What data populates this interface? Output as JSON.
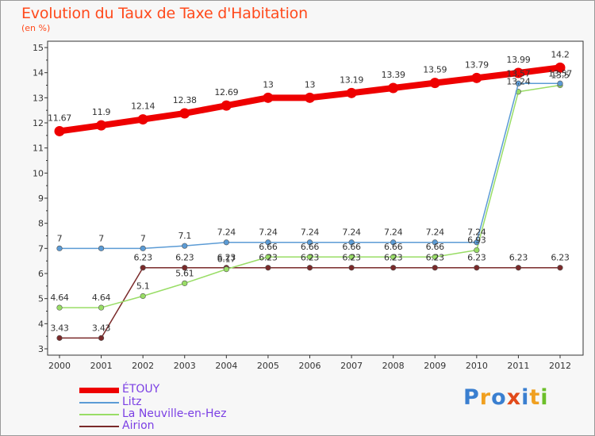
{
  "title": "Evolution du Taux de Taxe d'Habitation",
  "subtitle": "(en %)",
  "brand": {
    "text": "Proxiti",
    "colors": [
      "#3a7fd0",
      "#f0a020",
      "#3a7fd0",
      "#e24a1a",
      "#3a7fd0",
      "#f0a020",
      "#6cbf2a"
    ]
  },
  "chart_data": {
    "type": "line",
    "title": "Evolution du Taux de Taxe d'Habitation",
    "ylabel": "(en %)",
    "xlabel": "",
    "x": [
      "2000",
      "2001",
      "2002",
      "2003",
      "2004",
      "2005",
      "2006",
      "2007",
      "2008",
      "2009",
      "2010",
      "2011",
      "2012"
    ],
    "ylim": [
      3,
      15
    ],
    "yticks": [
      "3",
      "4",
      "5",
      "6",
      "7",
      "8",
      "9",
      "10",
      "11",
      "12",
      "13",
      "14",
      "15"
    ],
    "grid": false,
    "legend_position": "bottom-left",
    "series": [
      {
        "name": "ÉTOUY",
        "color": "#ee0000",
        "style": "thick",
        "values": [
          11.67,
          11.9,
          12.14,
          12.38,
          12.69,
          13,
          13,
          13.19,
          13.39,
          13.59,
          13.79,
          13.99,
          14.2
        ],
        "labels": [
          "11.67",
          "11.9",
          "12.14",
          "12.38",
          "12.69",
          "13",
          "13",
          "13.19",
          "13.39",
          "13.59",
          "13.79",
          "13.99",
          "14.2"
        ]
      },
      {
        "name": "Litz",
        "color": "#5b9bd5",
        "style": "thin",
        "values": [
          7,
          7,
          7,
          7.1,
          7.24,
          7.24,
          7.24,
          7.24,
          7.24,
          7.24,
          7.24,
          13.57,
          13.57
        ],
        "labels": [
          "7",
          "7",
          "7",
          "7.1",
          "7.24",
          "7.24",
          "7.24",
          "7.24",
          "7.24",
          "7.24",
          "7.24",
          "13.57",
          "13.57"
        ]
      },
      {
        "name": "La Neuville-en-Hez",
        "color": "#99dd66",
        "style": "thin",
        "values": [
          4.64,
          4.64,
          5.1,
          5.61,
          6.17,
          6.66,
          6.66,
          6.66,
          6.66,
          6.66,
          6.93,
          13.24,
          13.5
        ],
        "labels": [
          "4.64",
          "4.64",
          "5.1",
          "5.61",
          "6.17",
          "6.66",
          "6.66",
          "6.66",
          "6.66",
          "6.66",
          "6.93",
          "13.24",
          "13.5"
        ]
      },
      {
        "name": "Airion",
        "color": "#7a2a2a",
        "style": "thin",
        "values": [
          3.43,
          3.43,
          6.23,
          6.23,
          6.23,
          6.23,
          6.23,
          6.23,
          6.23,
          6.23,
          6.23,
          6.23,
          6.23
        ],
        "labels": [
          "3.43",
          "3.43",
          "6.23",
          "6.23",
          "6.23",
          "6.23",
          "6.23",
          "6.23",
          "6.23",
          "6.23",
          "6.23",
          "6.23",
          "6.23"
        ]
      }
    ]
  }
}
